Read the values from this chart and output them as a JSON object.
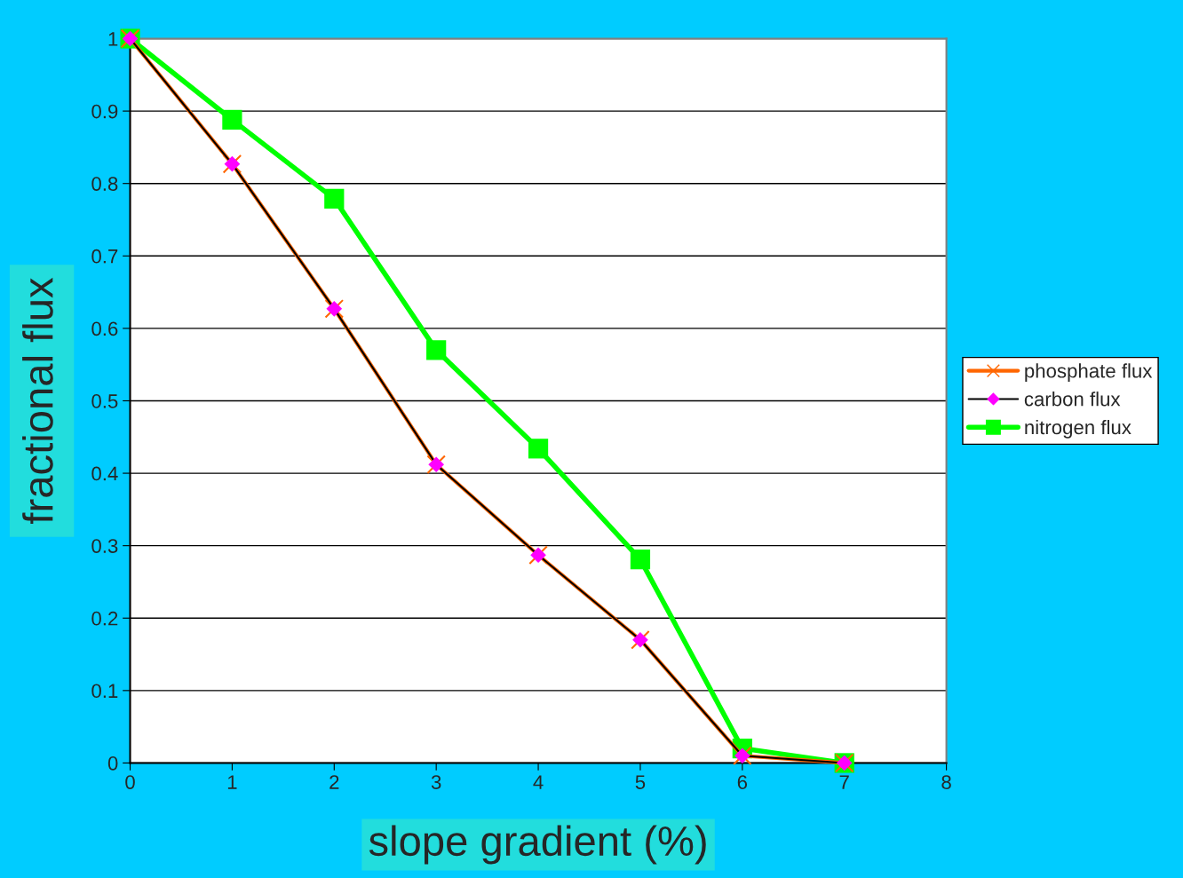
{
  "chart_data": {
    "type": "line",
    "xlabel": "slope gradient (%)",
    "ylabel": "fractional flux",
    "x": [
      0,
      1,
      2,
      3,
      4,
      5,
      6,
      7
    ],
    "series": [
      {
        "name": "phosphate flux",
        "color": "#ff6600",
        "marker": "cross",
        "values": [
          1.0,
          0.827,
          0.627,
          0.412,
          0.287,
          0.17,
          0.01,
          0.0
        ]
      },
      {
        "name": "carbon flux",
        "color": "#000000",
        "marker": "diamond",
        "values": [
          1.0,
          0.827,
          0.627,
          0.412,
          0.287,
          0.17,
          0.01,
          0.0
        ]
      },
      {
        "name": "nitrogen flux",
        "color": "#00ff00",
        "marker": "square",
        "values": [
          1.0,
          0.888,
          0.779,
          0.57,
          0.434,
          0.281,
          0.02,
          0.0
        ]
      }
    ],
    "xlim": [
      0,
      8
    ],
    "xticks": [
      0,
      1,
      2,
      3,
      4,
      5,
      6,
      7,
      8
    ],
    "ylim": [
      0,
      1
    ],
    "yticks": [
      0,
      0.1,
      0.2,
      0.3,
      0.4,
      0.5,
      0.6,
      0.7,
      0.8,
      0.9,
      1
    ],
    "grid": "y",
    "legend": "right"
  }
}
